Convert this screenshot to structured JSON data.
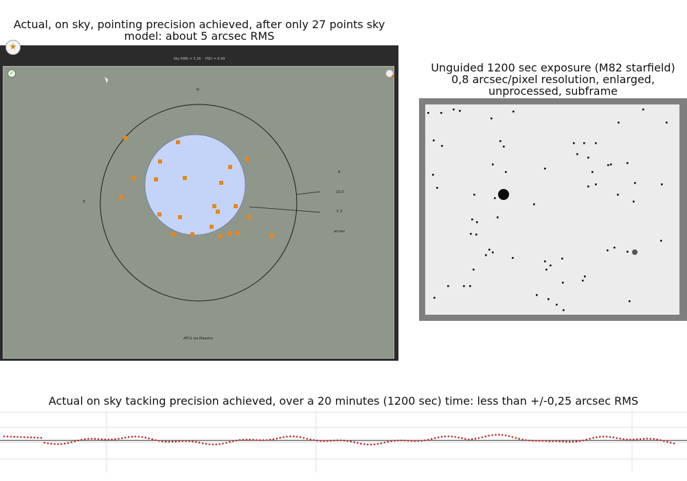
{
  "captions": {
    "left": "Actual, on sky, pointing precision achieved, after only 27 points sky model: about 5 arcsec RMS",
    "right": "Unguided 1200 sec exposure (M82 starfield) 0,8 arcsec/pixel resolution, enlarged, unprocessed, subframe",
    "bottom": "Actual on sky tacking precision achieved, over a 20 minutes (1200 sec) time: less than +/-0,25 arcsec RMS"
  },
  "app": {
    "sky_rms_label": "Sky RMS =",
    "sky_rms_value": "5.26",
    "psd_label": "PSD =",
    "psd_value": "6.99",
    "north_label": "N",
    "east_label": "E",
    "r_label": "R",
    "r_outer": "10.0",
    "r_inner": "5.3",
    "unit": "arcsec",
    "footer": "ATCS via Maestro",
    "icons": {
      "status": "checkmark-icon",
      "settings": "settings-icon",
      "logo": "app-logo-icon"
    },
    "colors": {
      "plot_bg": "#8e978a",
      "point": "#e8861e",
      "inner_disc": "#c4d4f8"
    },
    "points_count": 27
  }
}
